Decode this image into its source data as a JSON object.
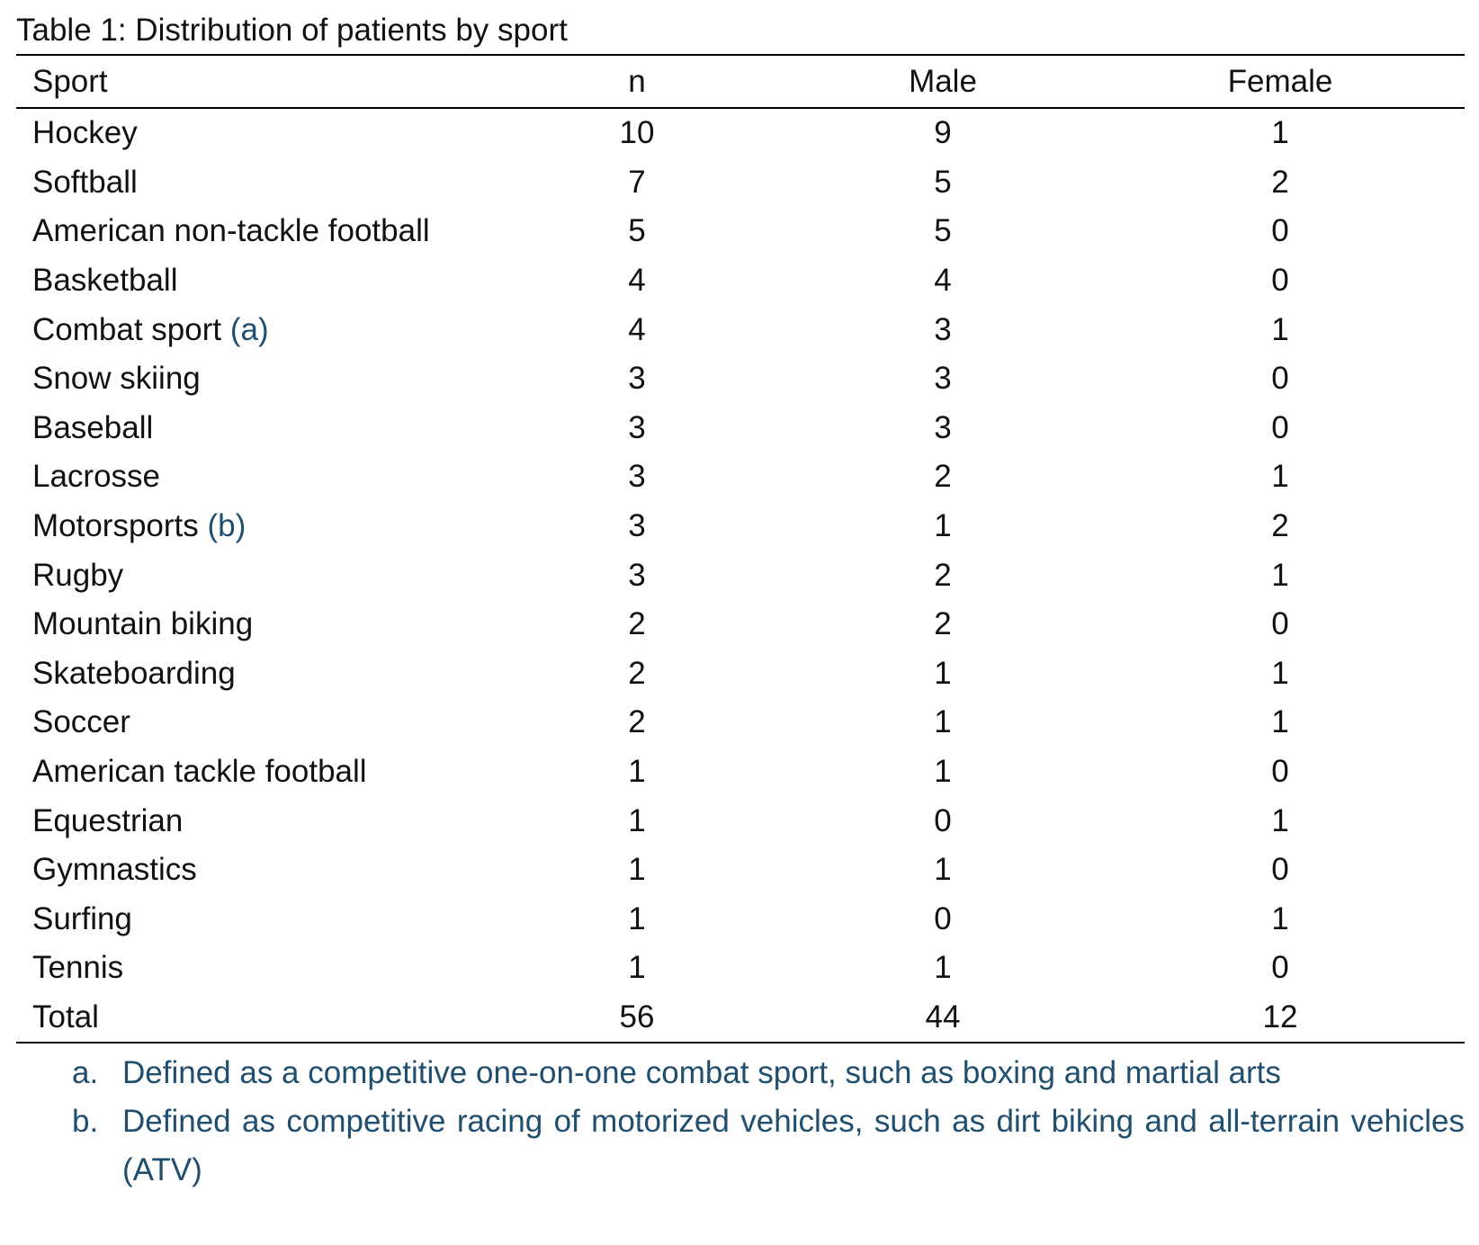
{
  "caption": "Table 1: Distribution of patients by sport",
  "table": {
    "headers": [
      "Sport",
      "n",
      "Male",
      "Female"
    ],
    "rows": [
      {
        "sport": "Hockey",
        "mark": "",
        "n": "10",
        "male": "9",
        "female": "1"
      },
      {
        "sport": "Softball",
        "mark": "",
        "n": "7",
        "male": "5",
        "female": "2"
      },
      {
        "sport": "American non-tackle football",
        "mark": "",
        "n": "5",
        "male": "5",
        "female": "0"
      },
      {
        "sport": "Basketball",
        "mark": "",
        "n": "4",
        "male": "4",
        "female": "0"
      },
      {
        "sport": "Combat sport",
        "mark": "(a)",
        "n": "4",
        "male": "3",
        "female": "1"
      },
      {
        "sport": "Snow skiing",
        "mark": "",
        "n": "3",
        "male": "3",
        "female": "0"
      },
      {
        "sport": "Baseball",
        "mark": "",
        "n": "3",
        "male": "3",
        "female": "0"
      },
      {
        "sport": "Lacrosse",
        "mark": "",
        "n": "3",
        "male": "2",
        "female": "1"
      },
      {
        "sport": "Motorsports",
        "mark": "(b)",
        "n": "3",
        "male": "1",
        "female": "2"
      },
      {
        "sport": "Rugby",
        "mark": "",
        "n": "3",
        "male": "2",
        "female": "1"
      },
      {
        "sport": "Mountain biking",
        "mark": "",
        "n": "2",
        "male": "2",
        "female": "0"
      },
      {
        "sport": "Skateboarding",
        "mark": "",
        "n": "2",
        "male": "1",
        "female": "1"
      },
      {
        "sport": "Soccer",
        "mark": "",
        "n": "2",
        "male": "1",
        "female": "1"
      },
      {
        "sport": "American tackle football",
        "mark": "",
        "n": "1",
        "male": "1",
        "female": "0"
      },
      {
        "sport": "Equestrian",
        "mark": "",
        "n": "1",
        "male": "0",
        "female": "1"
      },
      {
        "sport": "Gymnastics",
        "mark": "",
        "n": "1",
        "male": "1",
        "female": "0"
      },
      {
        "sport": "Surfing",
        "mark": "",
        "n": "1",
        "male": "0",
        "female": "1"
      },
      {
        "sport": "Tennis",
        "mark": "",
        "n": "1",
        "male": "1",
        "female": "0"
      },
      {
        "sport": "Total",
        "mark": "",
        "n": "56",
        "male": "44",
        "female": "12"
      }
    ]
  },
  "notes": [
    {
      "label": "a.",
      "text": "Defined as a competitive one-on-one combat sport, such as boxing and martial arts"
    },
    {
      "label": "b.",
      "text": "Defined as competitive racing of motorized vehicles, such as dirt biking and all-terrain vehicles (ATV)"
    }
  ],
  "colors": {
    "text": "#111111",
    "accent": "#1f4e6e",
    "rule": "#000000"
  }
}
